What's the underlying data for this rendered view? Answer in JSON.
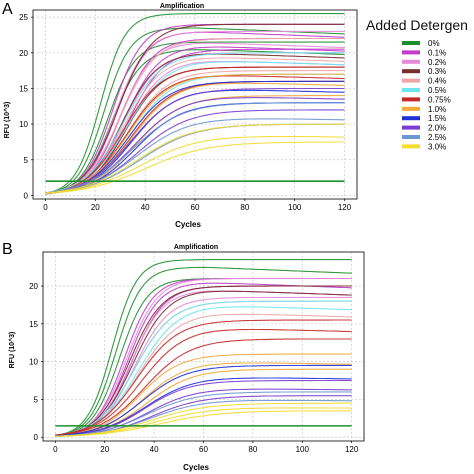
{
  "legend": {
    "title": "Added Detergen",
    "entries": [
      {
        "label": "0%",
        "color": "#1e8f2e"
      },
      {
        "label": "0.1%",
        "color": "#c03cc9"
      },
      {
        "label": "0.2%",
        "color": "#e68ad9"
      },
      {
        "label": "0.3%",
        "color": "#7a2d2d"
      },
      {
        "label": "0.4%",
        "color": "#f0a6a6"
      },
      {
        "label": "0.5%",
        "color": "#6fe6ef"
      },
      {
        "label": "0.75%",
        "color": "#c62828"
      },
      {
        "label": "1.0%",
        "color": "#f2a93b"
      },
      {
        "label": "1.5%",
        "color": "#1e2fd8"
      },
      {
        "label": "2.0%",
        "color": "#7a3bd0"
      },
      {
        "label": "2.5%",
        "color": "#6c96d4"
      },
      {
        "label": "3.0%",
        "color": "#f2dc2c"
      }
    ]
  },
  "chart_data": [
    {
      "panel": "A",
      "type": "line",
      "title": "Amplification",
      "xlabel": "Cycles",
      "ylabel": "RFU (10^3)",
      "xlim": [
        -5,
        125
      ],
      "ylim": [
        -0.5,
        26
      ],
      "xticks": [
        0,
        20,
        40,
        60,
        80,
        100,
        120
      ],
      "yticks": [
        0,
        5,
        10,
        15,
        20,
        25
      ],
      "threshold": 2,
      "x_end": 120,
      "grid": true,
      "series": [
        {
          "color": "#1e8f2e",
          "plateaus": [
            25.5,
            23.5,
            21.5,
            20.5
          ],
          "ct": 22,
          "slope": 0.2
        },
        {
          "color": "#c03cc9",
          "plateaus": [
            24,
            23,
            22,
            21,
            20.5
          ],
          "ct": 27,
          "slope": 0.17
        },
        {
          "color": "#e68ad9",
          "plateaus": [
            23,
            21.5,
            20,
            19
          ],
          "ct": 28,
          "slope": 0.16
        },
        {
          "color": "#7a2d2d",
          "plateaus": [
            24,
            20,
            18
          ],
          "ct": 29,
          "slope": 0.15
        },
        {
          "color": "#f0a6a6",
          "plateaus": [
            22,
            19.5,
            17.5
          ],
          "ct": 30,
          "slope": 0.14
        },
        {
          "color": "#6fe6ef",
          "plateaus": [
            20,
            19,
            17
          ],
          "ct": 31,
          "slope": 0.13
        },
        {
          "color": "#c62828",
          "plateaus": [
            18,
            17,
            16
          ],
          "ct": 31,
          "slope": 0.13
        },
        {
          "color": "#f2a93b",
          "plateaus": [
            17,
            16,
            14
          ],
          "ct": 33,
          "slope": 0.12
        },
        {
          "color": "#1e2fd8",
          "plateaus": [
            16,
            15,
            13
          ],
          "ct": 33,
          "slope": 0.12
        },
        {
          "color": "#7a3bd0",
          "plateaus": [
            15,
            14,
            12
          ],
          "ct": 34,
          "slope": 0.11
        },
        {
          "color": "#6c96d4",
          "plateaus": [
            13,
            11,
            10
          ],
          "ct": 35,
          "slope": 0.1
        },
        {
          "color": "#f2dc2c",
          "plateaus": [
            10,
            8.5,
            7.5
          ],
          "ct": 37,
          "slope": 0.09
        }
      ]
    },
    {
      "panel": "B",
      "type": "line",
      "title": "Amplification",
      "xlabel": "Cycles",
      "ylabel": "RFU (10^3)",
      "xlim": [
        -5,
        125
      ],
      "ylim": [
        -0.5,
        24.5
      ],
      "xticks": [
        0,
        20,
        40,
        60,
        80,
        100,
        120
      ],
      "yticks": [
        0,
        5,
        10,
        15,
        20
      ],
      "threshold": 1.5,
      "x_end": 120,
      "grid": true,
      "series": [
        {
          "color": "#1e8f2e",
          "plateaus": [
            23.5,
            22.5,
            21
          ],
          "ct": 23,
          "slope": 0.2
        },
        {
          "color": "#c03cc9",
          "plateaus": [
            21,
            20.5,
            20
          ],
          "ct": 28,
          "slope": 0.17
        },
        {
          "color": "#e68ad9",
          "plateaus": [
            21,
            19.5,
            18.5
          ],
          "ct": 29,
          "slope": 0.16
        },
        {
          "color": "#7a2d2d",
          "plateaus": [
            20,
            19.5
          ],
          "ct": 30,
          "slope": 0.15
        },
        {
          "color": "#f0a6a6",
          "plateaus": [
            18,
            16.5
          ],
          "ct": 32,
          "slope": 0.13
        },
        {
          "color": "#6fe6ef",
          "plateaus": [
            18,
            17.5
          ],
          "ct": 32,
          "slope": 0.13
        },
        {
          "color": "#c62828",
          "plateaus": [
            15.5,
            14.5,
            13
          ],
          "ct": 33,
          "slope": 0.12
        },
        {
          "color": "#f2a93b",
          "plateaus": [
            11,
            10,
            9
          ],
          "ct": 34,
          "slope": 0.12
        },
        {
          "color": "#1e2fd8",
          "plateaus": [
            9.5,
            8
          ],
          "ct": 35,
          "slope": 0.11
        },
        {
          "color": "#7a3bd0",
          "plateaus": [
            7.5,
            6.5,
            5.5
          ],
          "ct": 36,
          "slope": 0.11
        },
        {
          "color": "#6c96d4",
          "plateaus": [
            6,
            5
          ],
          "ct": 37,
          "slope": 0.1
        },
        {
          "color": "#f2dc2c",
          "plateaus": [
            4.5,
            4,
            3.5
          ],
          "ct": 39,
          "slope": 0.09
        }
      ]
    }
  ],
  "panel_letters": [
    "A",
    "B"
  ]
}
